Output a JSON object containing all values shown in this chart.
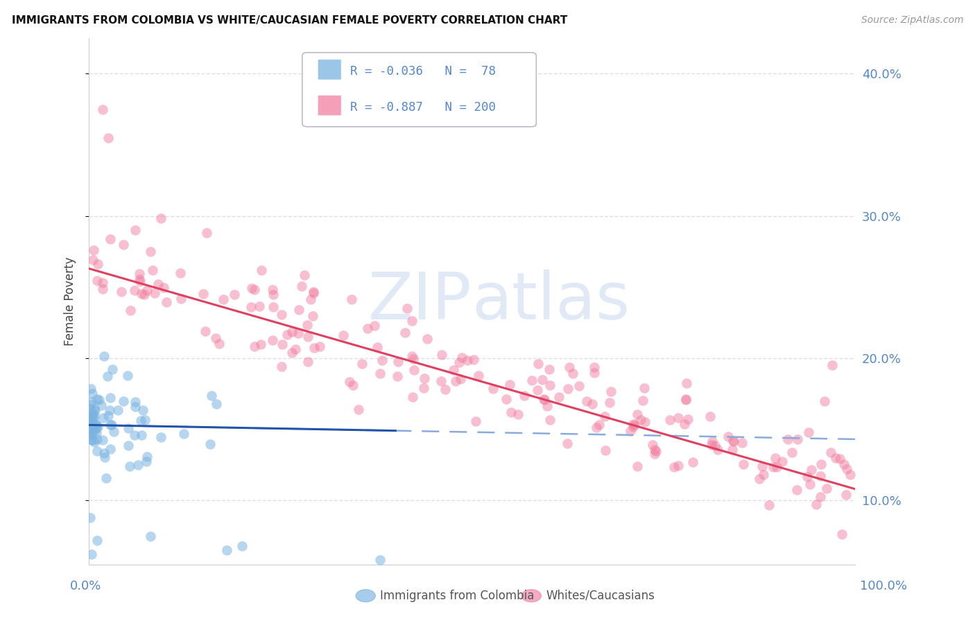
{
  "title": "IMMIGRANTS FROM COLOMBIA VS WHITE/CAUCASIAN FEMALE POVERTY CORRELATION CHART",
  "source_text": "Source: ZipAtlas.com",
  "ylabel": "Female Poverty",
  "blue_label": "Immigrants from Colombia",
  "pink_label": "Whites/Caucasians",
  "blue_R": -0.036,
  "blue_N": 78,
  "pink_R": -0.887,
  "pink_N": 200,
  "blue_color": "#7ab3e0",
  "pink_color": "#f080a0",
  "blue_line_color": "#2255aa",
  "pink_line_color": "#e04060",
  "blue_dashed_color": "#88aadd",
  "watermark_text": "ZIPatlas",
  "axis_label_color": "#5588cc",
  "background_color": "#ffffff",
  "grid_color": "#ddddee",
  "xmin": 0.0,
  "xmax": 1.0,
  "ymin": 0.055,
  "ymax": 0.425,
  "yticks": [
    0.1,
    0.2,
    0.3,
    0.4
  ],
  "ytick_labels": [
    "10.0%",
    "20.0%",
    "30.0%",
    "40.0%"
  ]
}
